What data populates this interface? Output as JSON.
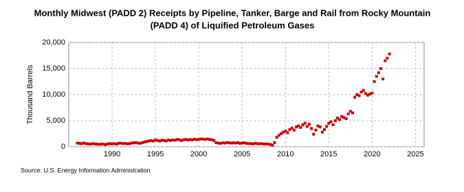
{
  "chart_data": {
    "type": "scatter",
    "title": [
      "Monthly Midwest (PADD 2) Receipts by Pipeline, Tanker, Barge and Rail from Rocky Mountain",
      "(PADD 4) of Liquified Petroleum Gases"
    ],
    "y_label": "Thousand Barrels",
    "source": "Source: U.S. Energy Information Administration",
    "color": "#cc0000",
    "grid": true,
    "xlim": [
      1985,
      2026
    ],
    "xticks": [
      1990,
      1995,
      2000,
      2005,
      2010,
      2015,
      2020,
      2025
    ],
    "ylim": [
      0,
      20000
    ],
    "yticks": [
      0,
      {
        "value": 5000,
        "label": "5,000"
      },
      {
        "value": 10000,
        "label": "10,000"
      },
      {
        "value": 15000,
        "label": "15,000"
      },
      {
        "value": 20000,
        "label": "20,000"
      }
    ],
    "x": [
      1986,
      1986.25,
      1986.5,
      1986.75,
      1987,
      1987.25,
      1987.5,
      1987.75,
      1988,
      1988.25,
      1988.5,
      1988.75,
      1989,
      1989.25,
      1989.5,
      1989.75,
      1990,
      1990.25,
      1990.5,
      1990.75,
      1991,
      1991.25,
      1991.5,
      1991.75,
      1992,
      1992.25,
      1992.5,
      1992.75,
      1993,
      1993.25,
      1993.5,
      1993.75,
      1994,
      1994.25,
      1994.5,
      1994.75,
      1995,
      1995.25,
      1995.5,
      1995.75,
      1996,
      1996.25,
      1996.5,
      1996.75,
      1997,
      1997.25,
      1997.5,
      1997.75,
      1998,
      1998.25,
      1998.5,
      1998.75,
      1999,
      1999.25,
      1999.5,
      1999.75,
      2000,
      2000.25,
      2000.5,
      2000.75,
      2001,
      2001.25,
      2001.5,
      2001.75,
      2002,
      2002.25,
      2002.5,
      2002.75,
      2003,
      2003.25,
      2003.5,
      2003.75,
      2004,
      2004.25,
      2004.5,
      2004.75,
      2005,
      2005.25,
      2005.5,
      2005.75,
      2006,
      2006.25,
      2006.5,
      2006.75,
      2007,
      2007.25,
      2007.5,
      2007.75,
      2008,
      2008.25,
      2008.5,
      2008.75,
      2009,
      2009.25,
      2009.5,
      2009.75,
      2010,
      2010.25,
      2010.5,
      2010.75,
      2011,
      2011.25,
      2011.5,
      2011.75,
      2012,
      2012.25,
      2012.5,
      2012.75,
      2013,
      2013.25,
      2013.5,
      2013.75,
      2014,
      2014.25,
      2014.5,
      2014.75,
      2015,
      2015.25,
      2015.5,
      2015.75,
      2016,
      2016.25,
      2016.5,
      2016.75,
      2017,
      2017.25,
      2017.5,
      2017.75,
      2018,
      2018.25,
      2018.5,
      2018.75,
      2019,
      2019.25,
      2019.5,
      2019.75,
      2020,
      2020.25,
      2020.5,
      2020.75,
      2021,
      2021.25,
      2021.5,
      2021.75,
      2022
    ],
    "values": [
      700,
      650,
      600,
      700,
      600,
      550,
      500,
      600,
      550,
      500,
      450,
      500,
      500,
      400,
      550,
      600,
      550,
      600,
      500,
      650,
      700,
      600,
      650,
      550,
      600,
      700,
      750,
      800,
      700,
      650,
      800,
      900,
      1000,
      1100,
      1200,
      1100,
      1300,
      1200,
      1100,
      1250,
      1200,
      1100,
      1300,
      1200,
      1300,
      1250,
      1400,
      1350,
      1200,
      1350,
      1400,
      1300,
      1400,
      1300,
      1450,
      1350,
      1400,
      1500,
      1450,
      1400,
      1500,
      1400,
      1350,
      1200,
      800,
      700,
      650,
      750,
      700,
      800,
      750,
      700,
      750,
      700,
      800,
      650,
      700,
      750,
      650,
      600,
      600,
      550,
      650,
      600,
      550,
      600,
      500,
      550,
      500,
      450,
      300,
      800,
      1800,
      2200,
      2500,
      2800,
      3000,
      2700,
      3300,
      3600,
      3200,
      3800,
      4000,
      3700,
      4200,
      4500,
      3900,
      4300,
      3500,
      2400,
      3200,
      4000,
      3800,
      2800,
      3300,
      3900,
      4500,
      4800,
      4200,
      5000,
      5500,
      5200,
      5800,
      5600,
      5400,
      6300,
      6800,
      6500,
      9500,
      10000,
      9800,
      10500,
      10800,
      10200,
      9900,
      10100,
      10300,
      12500,
      13500,
      14200,
      15000,
      13000,
      16500,
      17000,
      17800
    ]
  }
}
